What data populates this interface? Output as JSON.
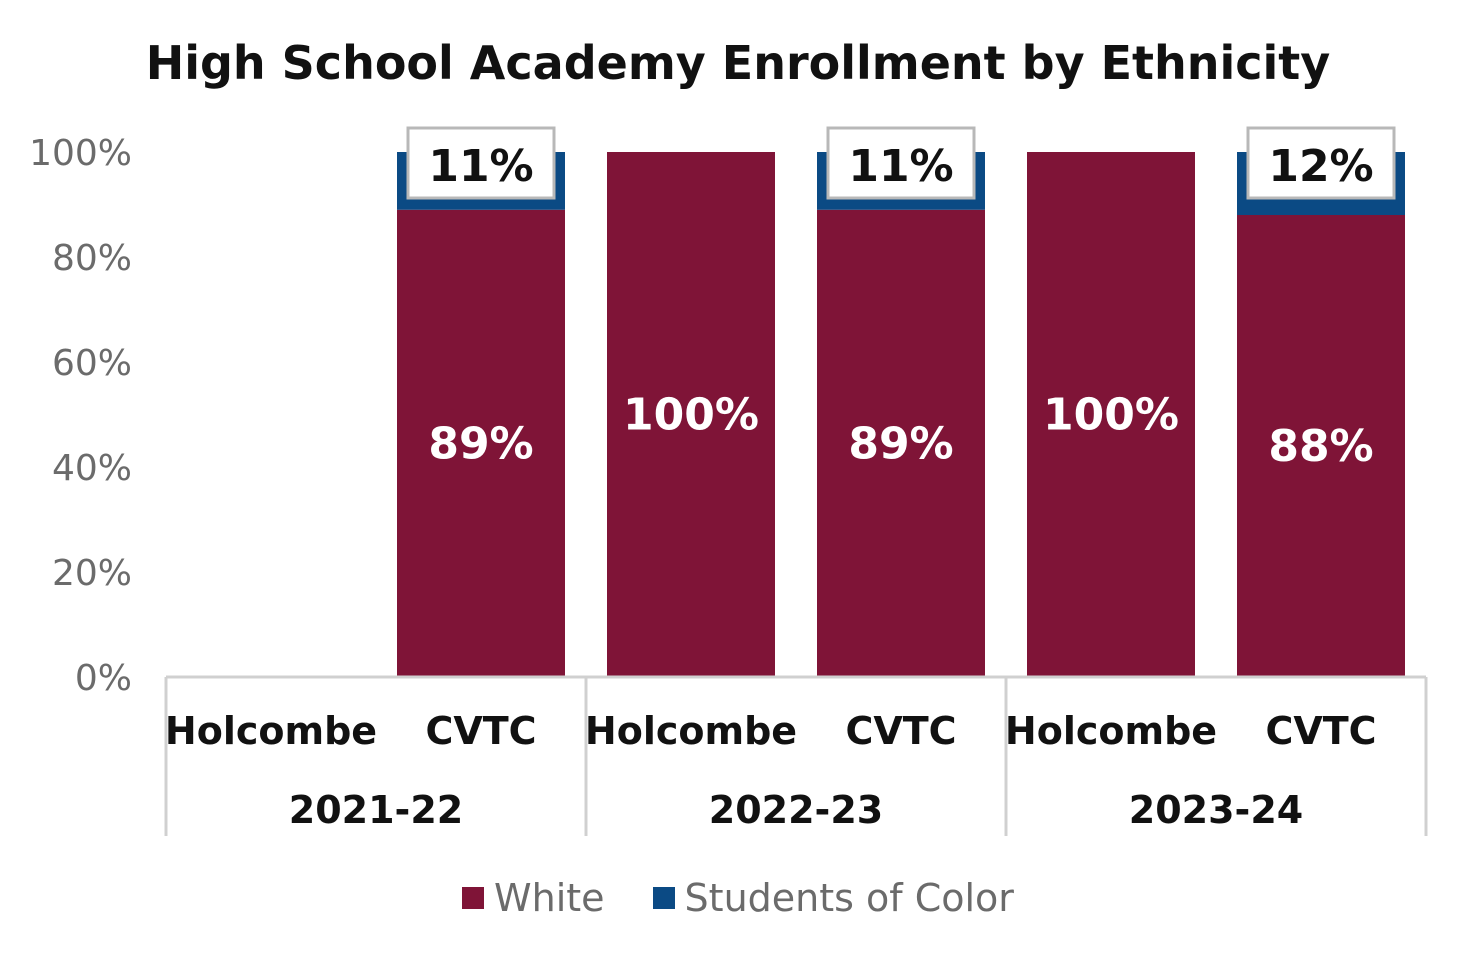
{
  "chart_data": {
    "type": "bar",
    "stacked": true,
    "title": "High School Academy Enrollment by Ethnicity",
    "yticks": [
      "0%",
      "20%",
      "40%",
      "60%",
      "80%",
      "100%"
    ],
    "ylim": [
      0,
      100
    ],
    "grid": false,
    "legend_position": "bottom",
    "groups": [
      {
        "label": "2021-22",
        "categories": [
          "Holcombe",
          "CVTC"
        ]
      },
      {
        "label": "2022-23",
        "categories": [
          "Holcombe",
          "CVTC"
        ]
      },
      {
        "label": "2023-24",
        "categories": [
          "Holcombe",
          "CVTC"
        ]
      }
    ],
    "categories": [
      "Holcombe",
      "CVTC",
      "Holcombe",
      "CVTC",
      "Holcombe",
      "CVTC"
    ],
    "series": [
      {
        "name": "White",
        "color": "#7f1437",
        "values": [
          null,
          89,
          100,
          89,
          100,
          88
        ],
        "labels": [
          "",
          "89%",
          "100%",
          "89%",
          "100%",
          "88%"
        ]
      },
      {
        "name": "Students of Color",
        "color": "#0b4a84",
        "values": [
          null,
          11,
          0,
          11,
          0,
          12
        ],
        "labels": [
          "",
          "11%",
          "",
          "11%",
          "",
          "12%"
        ]
      }
    ]
  }
}
